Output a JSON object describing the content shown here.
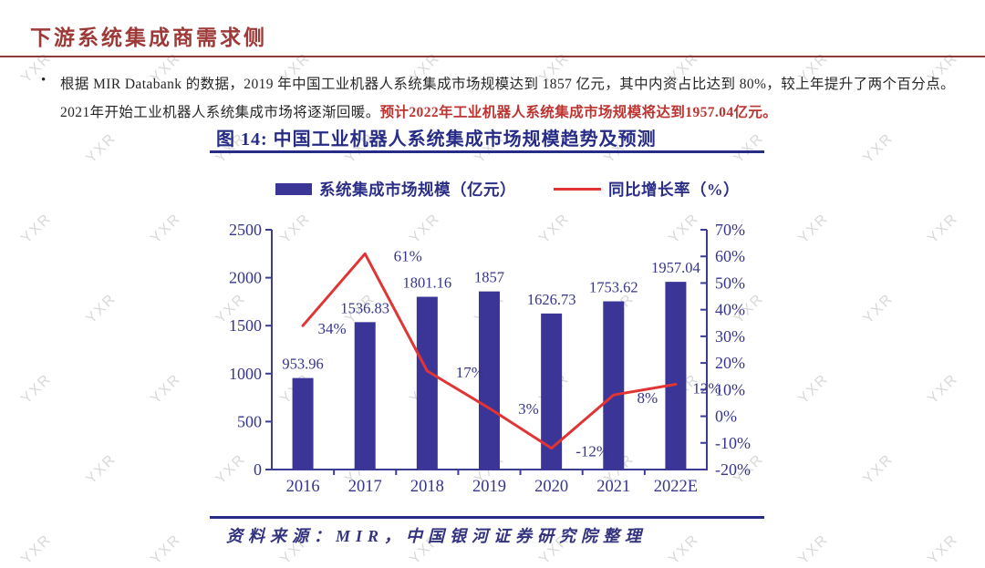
{
  "page": {
    "header": {
      "title": "下游系统集成商需求侧"
    },
    "bullet": {
      "marker": "•",
      "line1": "根据 MIR Databank 的数据，2019 年中国工业机器人系统集成市场规模达到 1857 亿元，其中内资占比达到 80%，较上年提升了两个百分点。",
      "line2_black": "2021年开始工业机器人系统集成市场将逐渐回暖。",
      "line2_red": "预计2022年工业机器人系统集成市场规模将达到1957.04亿元。"
    },
    "figure": {
      "title": "图 14:  中国工业机器人系统集成市场规模趋势及预测",
      "source": "资料来源：MIR，中国银河证券研究院整理"
    },
    "watermark": {
      "text": "YXR"
    },
    "colors": {
      "header_red": "#9d3a38",
      "highlight_red": "#bd3330",
      "figure_navy": "#272c86",
      "chart_text_navy": "#35358c"
    }
  },
  "chart_data": {
    "type": "bar",
    "subtype": "bar+line combo",
    "title": "中国工业机器人系统集成市场规模趋势及预测",
    "categories": [
      "2016",
      "2017",
      "2018",
      "2019",
      "2020",
      "2021",
      "2022E"
    ],
    "series": [
      {
        "name": "系统集成市场规模（亿元）",
        "type": "bar",
        "axis": "left",
        "color": "#3b3597",
        "values": [
          953.96,
          1536.83,
          1801.16,
          1857,
          1626.73,
          1753.62,
          1957.04
        ],
        "labels": [
          "953.96",
          "1536.83",
          "1801.16",
          "1857",
          "1626.73",
          "1753.62",
          "1957.04"
        ]
      },
      {
        "name": "同比增长率（%）",
        "type": "line",
        "axis": "right",
        "color": "#e13434",
        "values": [
          34,
          61,
          17,
          3,
          -12,
          8,
          12
        ],
        "labels": [
          "34%",
          "61%",
          "17%",
          "3%",
          "-12%",
          "8%",
          "12%"
        ]
      }
    ],
    "left_axis": {
      "min": 0,
      "max": 2500,
      "step": 500,
      "ticks": [
        "0",
        "500",
        "1000",
        "1500",
        "2000",
        "2500"
      ]
    },
    "right_axis": {
      "min": -20,
      "max": 70,
      "step": 10,
      "ticks": [
        "-20%",
        "-10%",
        "0%",
        "10%",
        "20%",
        "30%",
        "40%",
        "50%",
        "60%",
        "70%"
      ]
    },
    "grid": false,
    "legend_position": "top"
  }
}
